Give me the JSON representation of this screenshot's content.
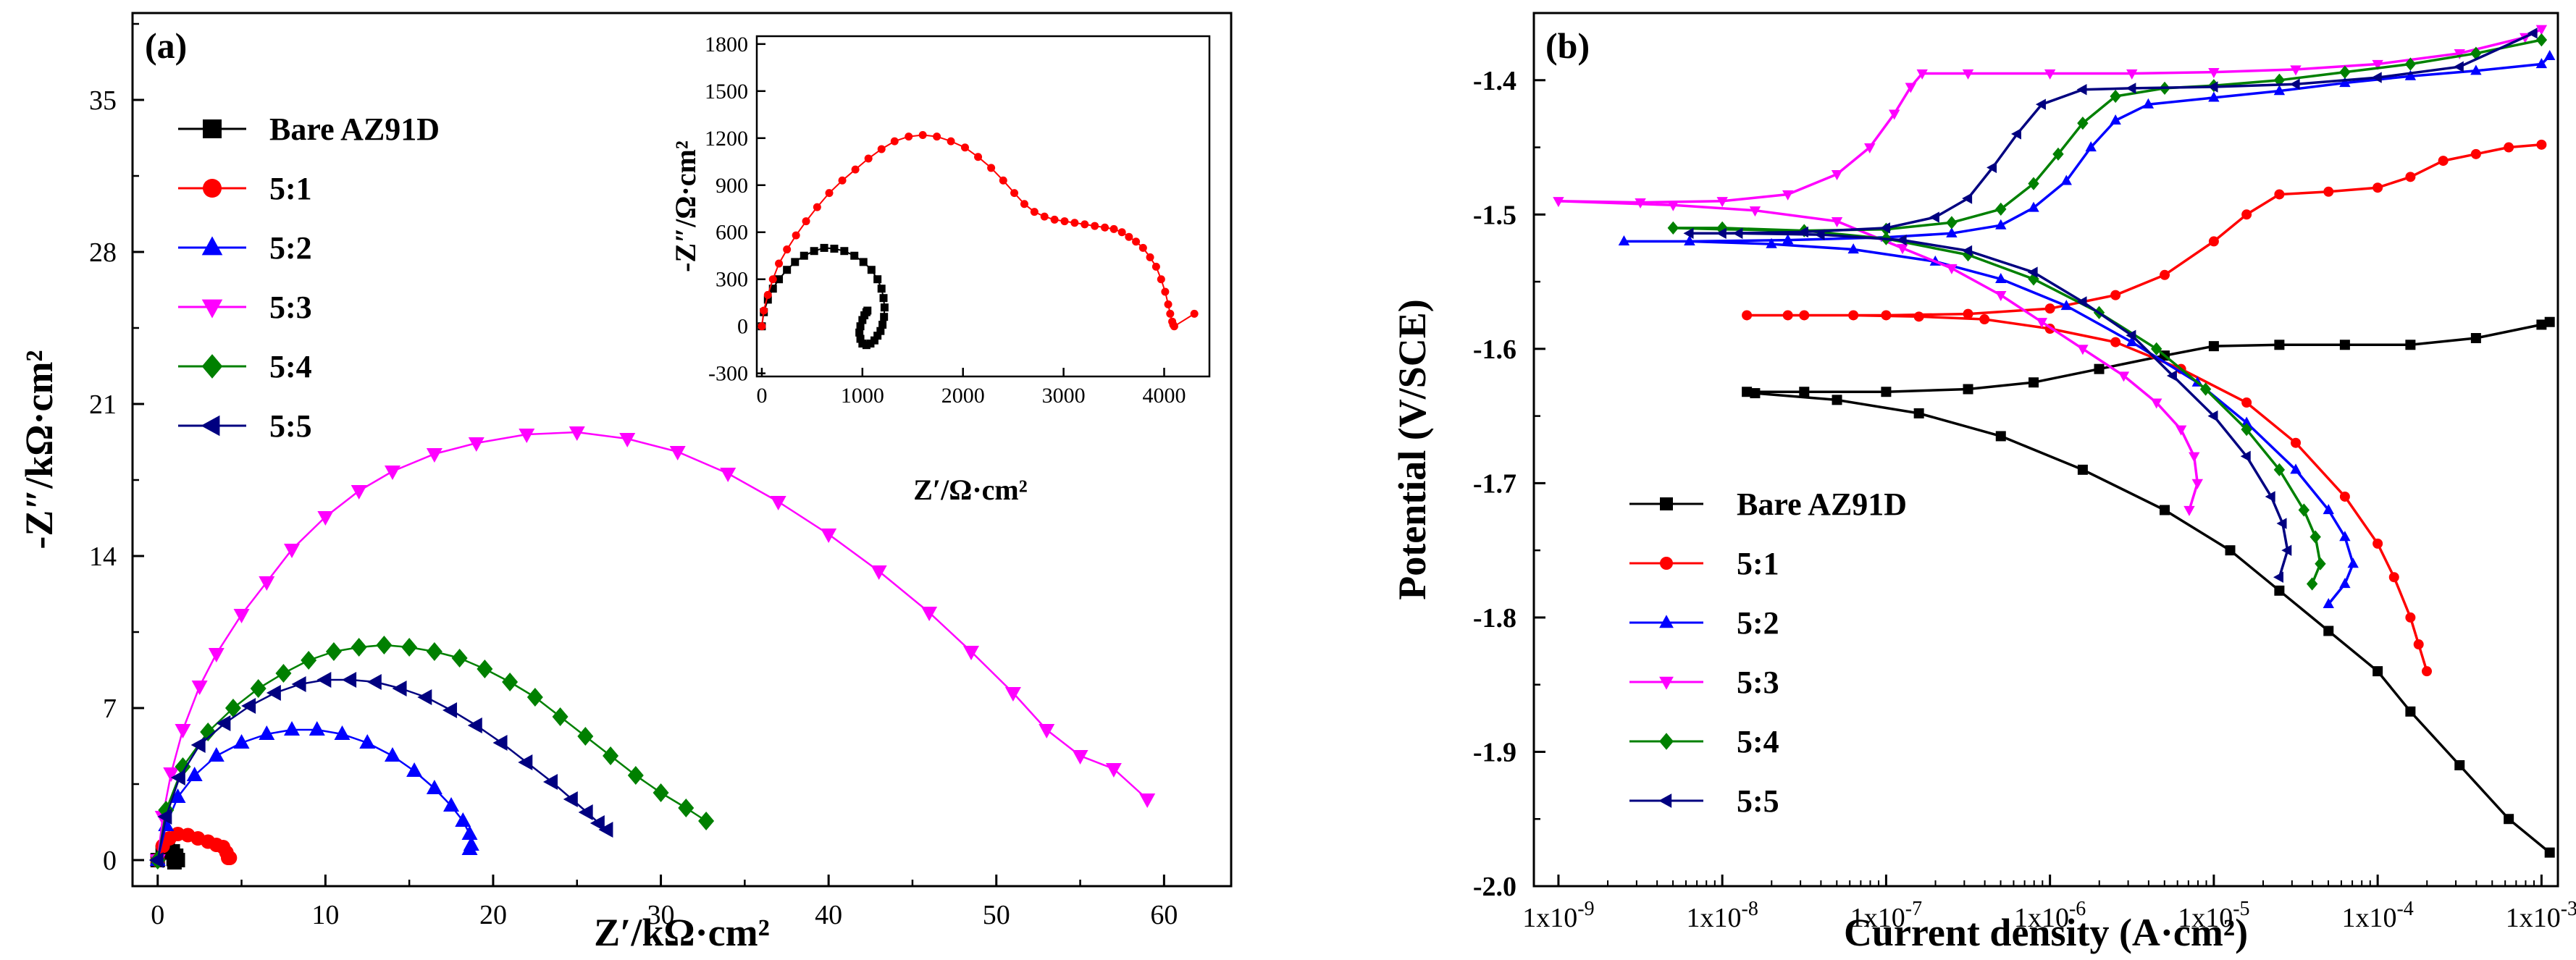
{
  "chart_data": [
    {
      "type": "scatter",
      "panel_label": "(a)",
      "title": "",
      "xlabel": "Z′/kΩ·cm²",
      "ylabel": "-Z″/kΩ·cm²",
      "xlim": [
        -1.5,
        64
      ],
      "ylim": [
        -1.2,
        39
      ],
      "xticks": [
        0,
        10,
        20,
        30,
        40,
        50,
        60
      ],
      "yticks": [
        0,
        7,
        14,
        21,
        28,
        35
      ],
      "xtick_labels": [
        "0",
        "10",
        "20",
        "30",
        "40",
        "50",
        "60"
      ],
      "ytick_labels": [
        "0",
        "7",
        "14",
        "21",
        "28",
        "35"
      ],
      "legend_position": "top-left",
      "series": [
        {
          "name": "Bare AZ91D",
          "color": "#000000",
          "marker": "square",
          "x": [
            0.0,
            0.3,
            0.6,
            0.9,
            1.1,
            1.2,
            1.0,
            0.95
          ],
          "y": [
            0.0,
            0.35,
            0.5,
            0.4,
            0.2,
            0.0,
            -0.1,
            0.05
          ]
        },
        {
          "name": "5:1",
          "color": "#ff0000",
          "marker": "circle",
          "x": [
            0.0,
            0.3,
            0.7,
            1.2,
            1.8,
            2.4,
            3.0,
            3.5,
            3.9,
            4.1,
            4.2,
            4.3
          ],
          "y": [
            0.0,
            0.65,
            1.0,
            1.2,
            1.15,
            1.0,
            0.85,
            0.7,
            0.6,
            0.35,
            0.1,
            0.1
          ]
        },
        {
          "name": "5:2",
          "color": "#0000ff",
          "marker": "triangle-up",
          "x": [
            0.0,
            0.5,
            1.2,
            2.2,
            3.5,
            5.0,
            6.5,
            8.0,
            9.5,
            11.0,
            12.5,
            14.0,
            15.3,
            16.5,
            17.5,
            18.2,
            18.6,
            18.7,
            18.6
          ],
          "y": [
            0.0,
            1.6,
            2.9,
            3.9,
            4.8,
            5.4,
            5.8,
            6.0,
            6.0,
            5.8,
            5.4,
            4.8,
            4.1,
            3.3,
            2.5,
            1.8,
            1.2,
            0.7,
            0.5
          ]
        },
        {
          "name": "5:3",
          "color": "#ff00ff",
          "marker": "triangle-down",
          "x": [
            0.0,
            0.3,
            0.8,
            1.5,
            2.5,
            3.5,
            5.0,
            6.5,
            8.0,
            10.0,
            12.0,
            14.0,
            16.5,
            19.0,
            22.0,
            25.0,
            28.0,
            31.0,
            34.0,
            37.0,
            40.0,
            43.0,
            46.0,
            48.5,
            51.0,
            53.0,
            55.0,
            57.0,
            59.0
          ],
          "y": [
            0.0,
            2.0,
            4.0,
            6.0,
            8.0,
            9.5,
            11.3,
            12.8,
            14.3,
            15.8,
            17.0,
            17.9,
            18.7,
            19.2,
            19.6,
            19.7,
            19.4,
            18.8,
            17.8,
            16.5,
            15.0,
            13.3,
            11.4,
            9.6,
            7.7,
            6.0,
            4.8,
            4.2,
            2.8
          ]
        },
        {
          "name": "5:4",
          "color": "#008000",
          "marker": "diamond",
          "x": [
            0.0,
            0.5,
            1.5,
            3.0,
            4.5,
            6.0,
            7.5,
            9.0,
            10.5,
            12.0,
            13.5,
            15.0,
            16.5,
            18.0,
            19.5,
            21.0,
            22.5,
            24.0,
            25.5,
            27.0,
            28.5,
            30.0,
            31.5,
            32.7
          ],
          "y": [
            0.0,
            2.3,
            4.3,
            5.9,
            7.0,
            7.9,
            8.6,
            9.2,
            9.6,
            9.8,
            9.9,
            9.8,
            9.6,
            9.3,
            8.8,
            8.2,
            7.5,
            6.6,
            5.7,
            4.8,
            3.9,
            3.1,
            2.4,
            1.8
          ]
        },
        {
          "name": "5:5",
          "color": "#000080",
          "marker": "triangle-left",
          "x": [
            0.0,
            0.5,
            1.3,
            2.5,
            4.0,
            5.5,
            7.0,
            8.5,
            10.0,
            11.5,
            13.0,
            14.5,
            16.0,
            17.5,
            19.0,
            20.5,
            22.0,
            23.5,
            24.7,
            25.6,
            26.3,
            26.8
          ],
          "y": [
            0.0,
            2.0,
            3.8,
            5.3,
            6.3,
            7.1,
            7.7,
            8.1,
            8.3,
            8.3,
            8.2,
            7.9,
            7.5,
            6.9,
            6.2,
            5.4,
            4.5,
            3.6,
            2.8,
            2.2,
            1.7,
            1.4
          ]
        }
      ],
      "inset": {
        "xlabel": "Z′/Ω·cm²",
        "ylabel": "-Z″/Ω·cm²",
        "xlim": [
          -50,
          4450
        ],
        "ylim": [
          -320,
          1850
        ],
        "xticks": [
          0,
          1000,
          2000,
          3000,
          4000
        ],
        "yticks": [
          -300,
          0,
          300,
          600,
          900,
          1200,
          1500,
          1800
        ],
        "xtick_labels": [
          "0",
          "1000",
          "2000",
          "3000",
          "4000"
        ],
        "ytick_labels": [
          "-300",
          "0",
          "300",
          "600",
          "900",
          "1200",
          "1500",
          "1800"
        ],
        "series": [
          {
            "name": "Bare AZ91D",
            "color": "#000000",
            "marker": "square",
            "x": [
              0,
              20,
              60,
              110,
              170,
              250,
              330,
              420,
              520,
              620,
              720,
              820,
              920,
              1010,
              1090,
              1150,
              1190,
              1210,
              1220,
              1215,
              1200,
              1180,
              1150,
              1120,
              1080,
              1040,
              1000,
              980,
              970,
              980,
              1000,
              1020,
              1040,
              1050
            ],
            "y": [
              0,
              90,
              170,
              240,
              300,
              360,
              410,
              450,
              480,
              500,
              495,
              480,
              450,
              410,
              360,
              300,
              240,
              180,
              120,
              60,
              10,
              -30,
              -60,
              -90,
              -110,
              -120,
              -110,
              -80,
              -40,
              0,
              40,
              70,
              90,
              100
            ]
          },
          {
            "name": "5:1",
            "color": "#ff0000",
            "marker": "circle",
            "x": [
              0,
              20,
              60,
              110,
              170,
              250,
              340,
              440,
              550,
              670,
              800,
              930,
              1060,
              1190,
              1320,
              1460,
              1600,
              1740,
              1880,
              2020,
              2150,
              2280,
              2400,
              2510,
              2610,
              2710,
              2810,
              2910,
              3010,
              3110,
              3210,
              3310,
              3410,
              3500,
              3580,
              3650,
              3720,
              3790,
              3860,
              3920,
              3970,
              4010,
              4040,
              4060,
              4080,
              4090,
              4100,
              4300
            ],
            "y": [
              0,
              100,
              200,
              300,
              400,
              490,
              580,
              670,
              760,
              850,
              930,
              1000,
              1070,
              1130,
              1180,
              1210,
              1220,
              1210,
              1180,
              1140,
              1080,
              1010,
              930,
              850,
              780,
              730,
              700,
              680,
              670,
              660,
              650,
              640,
              630,
              620,
              600,
              570,
              540,
              500,
              440,
              380,
              300,
              220,
              140,
              80,
              30,
              10,
              0,
              80
            ]
          }
        ]
      }
    },
    {
      "type": "line",
      "panel_label": "(b)",
      "title": "",
      "xlabel": "Current density (A·cm²)",
      "ylabel": "Potential (V/SCE)",
      "xscale": "log",
      "xlim_log10": [
        -9.15,
        -2.9
      ],
      "ylim": [
        -2.0,
        -1.35
      ],
      "xticks_log10": [
        -9,
        -8,
        -7,
        -6,
        -5,
        -4,
        -3
      ],
      "xtick_bases": [
        "1x10",
        "1x10",
        "1x10",
        "1x10",
        "1x10",
        "1x10",
        "1x10"
      ],
      "xtick_exponents": [
        "-9",
        "-8",
        "-7",
        "-6",
        "-5",
        "-4",
        "-3"
      ],
      "yticks": [
        -2.0,
        -1.9,
        -1.8,
        -1.7,
        -1.6,
        -1.5,
        -1.4
      ],
      "ytick_labels": [
        "-2.0",
        "-1.9",
        "-1.8",
        "-1.7",
        "-1.6",
        "-1.5",
        "-1.4"
      ],
      "legend_position": "lower-left",
      "series": [
        {
          "name": "Bare AZ91D",
          "color": "#000000",
          "marker": "square",
          "log10_i": [
            -2.95,
            -3.2,
            -3.5,
            -3.8,
            -4.0,
            -4.3,
            -4.6,
            -4.9,
            -5.3,
            -5.8,
            -6.3,
            -6.8,
            -7.3,
            -7.8,
            -7.85,
            -7.5,
            -7.0,
            -6.5,
            -6.1,
            -5.7,
            -5.3,
            -5.0,
            -4.6,
            -4.2,
            -3.8,
            -3.4,
            -3.0,
            -2.95
          ],
          "E": [
            -1.975,
            -1.95,
            -1.91,
            -1.87,
            -1.84,
            -1.81,
            -1.78,
            -1.75,
            -1.72,
            -1.69,
            -1.665,
            -1.648,
            -1.638,
            -1.633,
            -1.632,
            -1.632,
            -1.632,
            -1.63,
            -1.625,
            -1.615,
            -1.605,
            -1.598,
            -1.597,
            -1.597,
            -1.597,
            -1.592,
            -1.582,
            -1.58
          ]
        },
        {
          "name": "5:1",
          "color": "#ff0000",
          "marker": "circle",
          "log10_i": [
            -3.7,
            -3.75,
            -3.8,
            -3.9,
            -4.0,
            -4.2,
            -4.5,
            -4.8,
            -5.2,
            -5.6,
            -6.0,
            -6.4,
            -6.8,
            -7.2,
            -7.6,
            -7.85,
            -7.5,
            -7.0,
            -6.5,
            -6.0,
            -5.6,
            -5.3,
            -5.0,
            -4.8,
            -4.6,
            -4.3,
            -4.0,
            -3.8,
            -3.6,
            -3.4,
            -3.2,
            -3.0
          ],
          "E": [
            -1.84,
            -1.82,
            -1.8,
            -1.77,
            -1.745,
            -1.71,
            -1.67,
            -1.64,
            -1.615,
            -1.595,
            -1.585,
            -1.578,
            -1.576,
            -1.575,
            -1.575,
            -1.575,
            -1.575,
            -1.575,
            -1.574,
            -1.57,
            -1.56,
            -1.545,
            -1.52,
            -1.5,
            -1.485,
            -1.483,
            -1.48,
            -1.472,
            -1.46,
            -1.455,
            -1.45,
            -1.448
          ]
        },
        {
          "name": "5:2",
          "color": "#0000ff",
          "marker": "triangle-up",
          "log10_i": [
            -4.3,
            -4.2,
            -4.15,
            -4.2,
            -4.3,
            -4.5,
            -4.8,
            -5.1,
            -5.5,
            -5.9,
            -6.3,
            -6.7,
            -7.2,
            -7.7,
            -8.2,
            -8.6,
            -8.2,
            -7.6,
            -7.0,
            -6.6,
            -6.3,
            -6.1,
            -5.9,
            -5.75,
            -5.6,
            -5.4,
            -5.0,
            -4.6,
            -4.2,
            -3.8,
            -3.4,
            -3.0,
            -2.95
          ],
          "E": [
            -1.79,
            -1.775,
            -1.76,
            -1.74,
            -1.72,
            -1.69,
            -1.655,
            -1.625,
            -1.595,
            -1.568,
            -1.548,
            -1.535,
            -1.526,
            -1.522,
            -1.52,
            -1.52,
            -1.52,
            -1.519,
            -1.517,
            -1.514,
            -1.508,
            -1.495,
            -1.475,
            -1.45,
            -1.43,
            -1.418,
            -1.413,
            -1.408,
            -1.402,
            -1.397,
            -1.393,
            -1.388,
            -1.382
          ]
        },
        {
          "name": "5:3",
          "color": "#ff00ff",
          "marker": "triangle-down",
          "log10_i": [
            -5.15,
            -5.1,
            -5.12,
            -5.2,
            -5.35,
            -5.55,
            -5.8,
            -6.05,
            -6.3,
            -6.6,
            -6.9,
            -7.3,
            -7.8,
            -8.3,
            -9.0,
            -8.5,
            -8.0,
            -7.6,
            -7.3,
            -7.1,
            -6.95,
            -6.85,
            -6.78,
            -6.5,
            -6.0,
            -5.5,
            -5.0,
            -4.5,
            -4.0,
            -3.5,
            -3.1,
            -3.0
          ],
          "E": [
            -1.72,
            -1.7,
            -1.68,
            -1.66,
            -1.64,
            -1.62,
            -1.6,
            -1.58,
            -1.56,
            -1.54,
            -1.525,
            -1.505,
            -1.497,
            -1.493,
            -1.49,
            -1.491,
            -1.49,
            -1.485,
            -1.47,
            -1.45,
            -1.425,
            -1.405,
            -1.395,
            -1.395,
            -1.395,
            -1.395,
            -1.394,
            -1.392,
            -1.388,
            -1.38,
            -1.368,
            -1.362
          ]
        },
        {
          "name": "5:4",
          "color": "#008000",
          "marker": "diamond",
          "log10_i": [
            -4.4,
            -4.35,
            -4.38,
            -4.45,
            -4.6,
            -4.8,
            -5.05,
            -5.35,
            -5.7,
            -6.1,
            -6.5,
            -7.0,
            -7.5,
            -8.0,
            -8.3,
            -8.0,
            -7.5,
            -7.0,
            -6.6,
            -6.3,
            -6.1,
            -5.95,
            -5.8,
            -5.6,
            -5.3,
            -5.0,
            -4.6,
            -4.2,
            -3.8,
            -3.4,
            -3.0
          ],
          "E": [
            -1.775,
            -1.76,
            -1.74,
            -1.72,
            -1.69,
            -1.66,
            -1.63,
            -1.6,
            -1.573,
            -1.548,
            -1.53,
            -1.518,
            -1.512,
            -1.51,
            -1.51,
            -1.511,
            -1.512,
            -1.511,
            -1.506,
            -1.496,
            -1.477,
            -1.455,
            -1.432,
            -1.412,
            -1.406,
            -1.404,
            -1.4,
            -1.394,
            -1.388,
            -1.38,
            -1.37
          ]
        },
        {
          "name": "5:5",
          "color": "#000080",
          "marker": "triangle-left",
          "log10_i": [
            -4.6,
            -4.55,
            -4.58,
            -4.65,
            -4.8,
            -5.0,
            -5.25,
            -5.5,
            -5.8,
            -6.1,
            -6.5,
            -6.9,
            -7.4,
            -7.9,
            -8.2,
            -8.0,
            -7.5,
            -7.0,
            -6.7,
            -6.5,
            -6.35,
            -6.2,
            -6.05,
            -5.8,
            -5.5,
            -5.0,
            -4.5,
            -4.0,
            -3.5,
            -3.05
          ],
          "E": [
            -1.77,
            -1.75,
            -1.73,
            -1.71,
            -1.68,
            -1.65,
            -1.62,
            -1.59,
            -1.565,
            -1.543,
            -1.527,
            -1.519,
            -1.515,
            -1.514,
            -1.514,
            -1.514,
            -1.513,
            -1.51,
            -1.502,
            -1.488,
            -1.465,
            -1.44,
            -1.418,
            -1.407,
            -1.406,
            -1.405,
            -1.403,
            -1.398,
            -1.39,
            -1.365
          ]
        }
      ]
    }
  ]
}
